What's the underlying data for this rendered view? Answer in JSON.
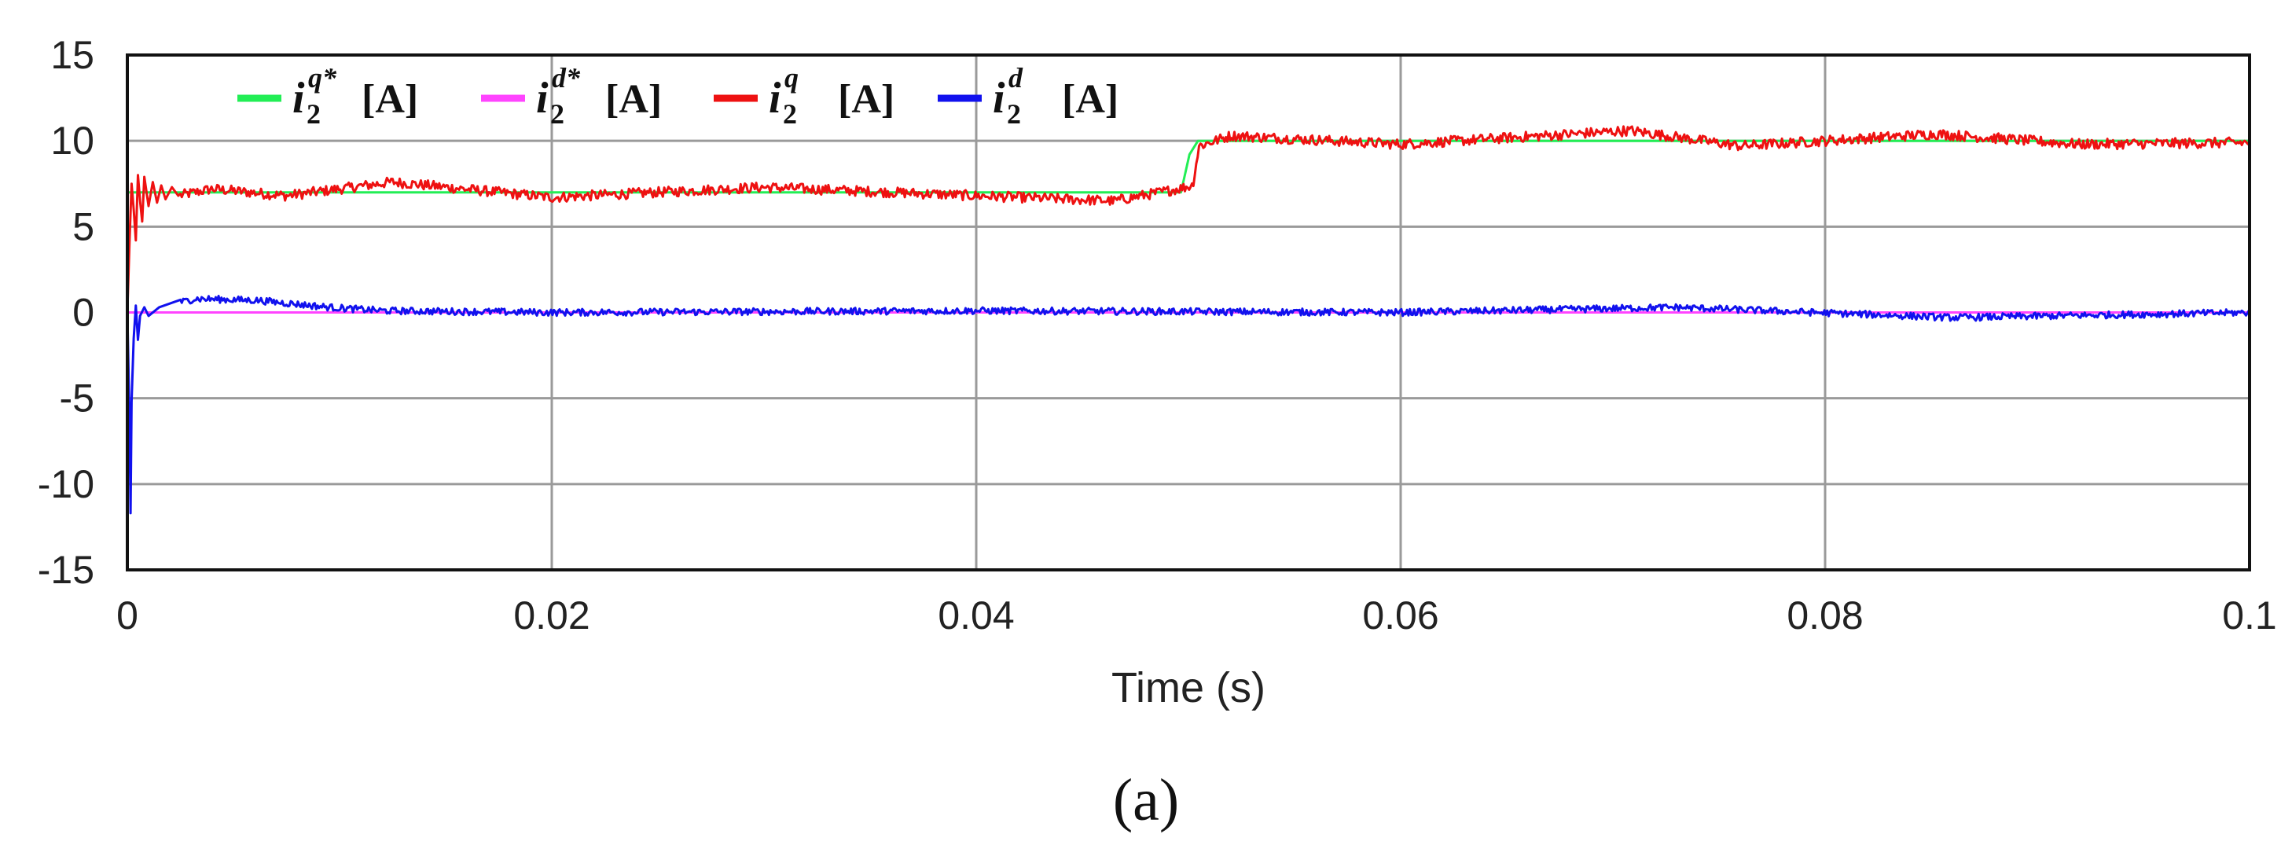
{
  "chart_data": {
    "type": "line",
    "caption": "(a)",
    "xlabel": "Time (s)",
    "ylabel": "",
    "title": "",
    "xlim": [
      0,
      0.1
    ],
    "ylim": [
      -15,
      15
    ],
    "x_ticks": [
      0,
      0.02,
      0.04,
      0.06,
      0.08,
      0.1
    ],
    "x_tick_labels": [
      "0",
      "0.02",
      "0.04",
      "0.06",
      "0.08",
      "0.1"
    ],
    "y_ticks": [
      15,
      10,
      5,
      0,
      -5,
      -10,
      -15
    ],
    "y_tick_labels": [
      "15",
      "10",
      "5",
      "0",
      "-5",
      "-10",
      "-15"
    ],
    "grid": true,
    "legend_position": "top-left",
    "series": [
      {
        "name": "i2q* [A]",
        "symbol": "i",
        "sub": "2",
        "sup": "q*",
        "unit": "[A]",
        "color": "#22ee55",
        "points": [
          [
            0,
            7
          ],
          [
            0.04965,
            7
          ],
          [
            0.05005,
            9.2
          ],
          [
            0.05045,
            10
          ],
          [
            0.1,
            10
          ]
        ]
      },
      {
        "name": "i2d* [A]",
        "symbol": "i",
        "sub": "2",
        "sup": "d*",
        "unit": "[A]",
        "color": "#ff44ff",
        "points": [
          [
            0,
            0
          ],
          [
            0.1,
            0
          ]
        ]
      },
      {
        "name": "i2q [A]",
        "symbol": "i",
        "sub": "2",
        "sup": "q",
        "unit": "[A]",
        "color": "#ee1111",
        "points": [
          [
            0,
            0
          ],
          [
            0.0001,
            4
          ],
          [
            0.0002,
            7.5
          ],
          [
            0.0003,
            6
          ],
          [
            0.0004,
            4.2
          ],
          [
            0.0005,
            8
          ],
          [
            0.0006,
            6.5
          ],
          [
            0.0007,
            5.3
          ],
          [
            0.0008,
            7.9
          ],
          [
            0.001,
            6.2
          ],
          [
            0.0012,
            7.6
          ],
          [
            0.0014,
            6.4
          ],
          [
            0.0016,
            7.4
          ],
          [
            0.0018,
            6.6
          ],
          [
            0.0021,
            7.3
          ],
          [
            0.0024,
            6.8
          ],
          [
            0.004,
            7.2
          ],
          [
            0.0075,
            6.8
          ],
          [
            0.0125,
            7.6
          ],
          [
            0.02,
            6.7
          ],
          [
            0.03,
            7.3
          ],
          [
            0.04,
            6.8
          ],
          [
            0.0465,
            6.5
          ],
          [
            0.0495,
            7.2
          ],
          [
            0.0502,
            7.4
          ],
          [
            0.0505,
            9.7
          ],
          [
            0.052,
            10.3
          ],
          [
            0.06,
            9.8
          ],
          [
            0.0708,
            10.6
          ],
          [
            0.076,
            9.7
          ],
          [
            0.0852,
            10.4
          ],
          [
            0.092,
            9.8
          ],
          [
            0.1,
            9.9
          ]
        ],
        "noise_amplitude": 0.3
      },
      {
        "name": "i2d [A]",
        "symbol": "i",
        "sub": "2",
        "sup": "d",
        "unit": "[A]",
        "color": "#1111ee",
        "points": [
          [
            0,
            0
          ],
          [
            0.0001,
            -6
          ],
          [
            0.00015,
            -11.7
          ],
          [
            0.0002,
            -5.2
          ],
          [
            0.0003,
            -1.5
          ],
          [
            0.0004,
            0.4
          ],
          [
            0.0005,
            -1.6
          ],
          [
            0.0006,
            -0.2
          ],
          [
            0.0008,
            0.3
          ],
          [
            0.001,
            -0.2
          ],
          [
            0.0015,
            0.3
          ],
          [
            0.0032,
            0.8
          ],
          [
            0.0062,
            0.7
          ],
          [
            0.0095,
            0.3
          ],
          [
            0.012,
            0.1
          ],
          [
            0.02,
            0
          ],
          [
            0.04,
            0.1
          ],
          [
            0.06,
            0
          ],
          [
            0.073,
            0.3
          ],
          [
            0.086,
            -0.3
          ],
          [
            0.1,
            0
          ]
        ],
        "noise_amplitude": 0.2
      }
    ]
  }
}
